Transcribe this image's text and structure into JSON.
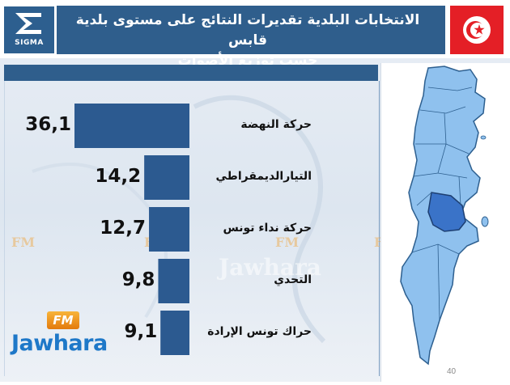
{
  "header": {
    "logo_text": "SIGMA",
    "title_line1": "الانتخابات البلدية تقديرات النتائج على مستوى بلدية قابس",
    "title_line2": "حسب توزيع الأصوات"
  },
  "watermark": {
    "fm": "FM",
    "word": "Jawhara"
  },
  "logo": {
    "fm": "FM",
    "word": "Jawhara"
  },
  "page_number": "40",
  "colors": {
    "bar": "#2c5a90",
    "band": "#2f5e8c",
    "map_fill": "#8fc1ee",
    "map_highlight": "#3a73c8",
    "flag": "#e41f26"
  },
  "chart_data": {
    "type": "bar",
    "orientation": "horizontal",
    "categories": [
      "حركة النهضة",
      "التيارالديمقراطي",
      "حركة نداء تونس",
      "التحدي",
      "حراك تونس الإرادة"
    ],
    "values": [
      36.1,
      14.2,
      12.7,
      9.8,
      9.1
    ],
    "value_labels": [
      "36,1",
      "14,2",
      "12,7",
      "9,8",
      "9,1"
    ]
  }
}
